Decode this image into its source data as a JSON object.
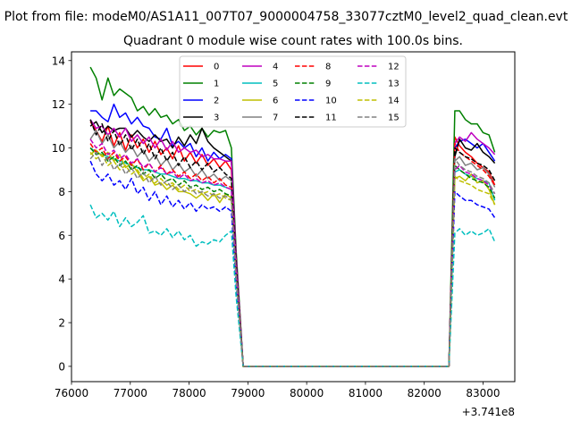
{
  "suptitle": "Plot from file: modeM0/AS1A11_007T07_9000004758_33077cztM0_level2_quad_clean.evt",
  "chart_data": {
    "type": "line",
    "title": "Quadrant 0 module wise count rates with 100.0s bins.",
    "xlabel": "",
    "ylabel": "",
    "x_offset_label": "+3.741e8",
    "xlim": [
      76000,
      83540
    ],
    "ylim": [
      -0.7,
      14.4
    ],
    "x_ticks": [
      76000,
      77000,
      78000,
      79000,
      80000,
      81000,
      82000,
      83000
    ],
    "y_ticks": [
      0,
      2,
      4,
      6,
      8,
      10,
      12,
      14
    ],
    "grid": false,
    "legend_position": "top-center",
    "legend_columns": 4,
    "x": [
      76320,
      76420,
      76520,
      76620,
      76720,
      76820,
      76920,
      77020,
      77120,
      77220,
      77320,
      77420,
      77520,
      77620,
      77720,
      77820,
      77920,
      78020,
      78120,
      78220,
      78320,
      78420,
      78520,
      78620,
      78720,
      78800,
      78920,
      79020,
      80000,
      81000,
      82000,
      82420,
      82520,
      82600,
      82700,
      82800,
      82900,
      83000,
      83100,
      83200
    ],
    "series": [
      {
        "name": "0",
        "color": "#ff0000",
        "style": "solid",
        "values": [
          11.2,
          10.8,
          10.3,
          11.0,
          10.1,
          10.7,
          9.9,
          10.6,
          10.0,
          10.4,
          9.8,
          10.3,
          9.7,
          10.0,
          9.5,
          10.1,
          9.4,
          9.8,
          9.3,
          9.7,
          9.2,
          9.5,
          9.1,
          9.4,
          9.0,
          5.0,
          0,
          0,
          0,
          0,
          0,
          0,
          10.5,
          10.1,
          9.8,
          9.6,
          9.3,
          9.1,
          8.9,
          8.3
        ]
      },
      {
        "name": "1",
        "color": "#008000",
        "style": "solid",
        "values": [
          13.7,
          13.2,
          12.2,
          13.2,
          12.4,
          12.7,
          12.5,
          12.3,
          11.7,
          11.9,
          11.5,
          11.8,
          11.4,
          11.5,
          11.1,
          11.3,
          10.8,
          11.0,
          10.6,
          10.9,
          10.5,
          10.8,
          10.7,
          10.8,
          10.0,
          5.3,
          0,
          0,
          0,
          0,
          0,
          0,
          11.7,
          11.7,
          11.3,
          11.1,
          11.1,
          10.7,
          10.6,
          9.8
        ]
      },
      {
        "name": "2",
        "color": "#0000ff",
        "style": "solid",
        "values": [
          11.7,
          11.7,
          11.4,
          11.2,
          12.0,
          11.4,
          11.6,
          11.1,
          11.4,
          11.0,
          10.9,
          10.5,
          10.4,
          10.9,
          10.1,
          10.3,
          10.0,
          10.2,
          9.6,
          10.0,
          9.4,
          9.8,
          9.5,
          9.7,
          9.5,
          4.8,
          0,
          0,
          0,
          0,
          0,
          0,
          10.0,
          10.3,
          10.4,
          10.2,
          10.0,
          10.2,
          9.8,
          9.4
        ]
      },
      {
        "name": "3",
        "color": "#000000",
        "style": "solid",
        "values": [
          11.0,
          11.2,
          10.7,
          11.0,
          10.8,
          10.9,
          10.9,
          10.5,
          10.8,
          10.5,
          10.3,
          10.6,
          10.3,
          10.4,
          10.0,
          10.5,
          10.1,
          10.6,
          10.2,
          10.9,
          10.3,
          10.0,
          9.8,
          9.6,
          9.4,
          5.0,
          0,
          0,
          0,
          0,
          0,
          0,
          9.6,
          10.4,
          10.0,
          9.9,
          10.2,
          9.8,
          9.6,
          9.3
        ]
      },
      {
        "name": "4",
        "color": "#bf00bf",
        "style": "solid",
        "values": [
          11.3,
          10.9,
          11.0,
          10.6,
          10.9,
          10.5,
          10.9,
          10.3,
          10.6,
          10.2,
          10.5,
          10.0,
          10.4,
          9.9,
          10.3,
          9.8,
          10.0,
          9.8,
          9.9,
          9.6,
          9.7,
          9.5,
          9.5,
          9.4,
          9.4,
          5.0,
          0,
          0,
          0,
          0,
          0,
          0,
          10.2,
          10.5,
          10.3,
          10.7,
          10.4,
          10.2,
          10.0,
          9.7
        ]
      },
      {
        "name": "5",
        "color": "#00bfbf",
        "style": "solid",
        "values": [
          10.0,
          9.8,
          9.7,
          9.6,
          9.5,
          9.4,
          9.3,
          9.2,
          9.1,
          9.0,
          9.0,
          8.9,
          8.8,
          8.8,
          8.7,
          8.6,
          8.6,
          8.5,
          8.5,
          8.4,
          8.4,
          8.3,
          8.3,
          8.2,
          8.1,
          4.4,
          0,
          0,
          0,
          0,
          0,
          0,
          8.9,
          9.0,
          8.8,
          8.7,
          8.6,
          8.5,
          8.4,
          7.6
        ]
      },
      {
        "name": "6",
        "color": "#bfbf00",
        "style": "solid",
        "values": [
          9.7,
          9.9,
          9.6,
          9.8,
          9.4,
          9.7,
          9.1,
          9.3,
          8.9,
          8.5,
          8.7,
          8.3,
          8.4,
          8.1,
          8.3,
          8.0,
          8.0,
          7.9,
          7.7,
          7.9,
          7.6,
          7.9,
          7.5,
          7.9,
          7.7,
          4.2,
          0,
          0,
          0,
          0,
          0,
          0,
          8.6,
          8.7,
          8.5,
          8.8,
          8.4,
          8.5,
          8.1,
          7.4
        ]
      },
      {
        "name": "7",
        "color": "#808080",
        "style": "solid",
        "values": [
          10.4,
          10.8,
          10.2,
          10.6,
          10.0,
          10.3,
          9.8,
          10.1,
          9.6,
          9.9,
          9.4,
          9.7,
          9.2,
          9.5,
          9.0,
          9.3,
          8.9,
          9.1,
          8.7,
          9.0,
          8.6,
          8.8,
          8.5,
          8.7,
          8.5,
          4.6,
          0,
          0,
          0,
          0,
          0,
          0,
          9.4,
          9.6,
          9.2,
          9.3,
          9.0,
          9.1,
          8.8,
          8.2
        ]
      },
      {
        "name": "8",
        "color": "#ff0000",
        "style": "dashed",
        "values": [
          10.2,
          9.8,
          10.0,
          9.5,
          9.8,
          9.4,
          9.6,
          9.2,
          9.5,
          9.0,
          9.3,
          8.9,
          9.2,
          8.8,
          9.0,
          8.7,
          8.9,
          8.6,
          8.8,
          8.5,
          8.7,
          8.4,
          8.6,
          8.3,
          8.2,
          4.5,
          0,
          0,
          0,
          0,
          0,
          0,
          10.2,
          9.8,
          9.6,
          9.4,
          9.2,
          9.0,
          8.7,
          8.3
        ]
      },
      {
        "name": "9",
        "color": "#008000",
        "style": "dashed",
        "values": [
          10.0,
          9.7,
          9.8,
          9.4,
          9.6,
          9.2,
          9.4,
          9.0,
          9.2,
          8.8,
          9.0,
          8.6,
          8.8,
          8.5,
          8.6,
          8.3,
          8.5,
          8.2,
          8.3,
          8.1,
          8.2,
          8.0,
          8.1,
          7.9,
          7.8,
          4.3,
          0,
          0,
          0,
          0,
          0,
          0,
          9.2,
          9.0,
          8.8,
          8.6,
          8.5,
          8.4,
          8.2,
          7.7
        ]
      },
      {
        "name": "10",
        "color": "#0000ff",
        "style": "dashed",
        "values": [
          9.4,
          8.8,
          8.5,
          8.8,
          8.3,
          8.5,
          8.1,
          8.6,
          7.9,
          8.2,
          7.6,
          8.0,
          7.4,
          7.8,
          7.3,
          7.6,
          7.2,
          7.5,
          7.1,
          7.4,
          7.2,
          7.3,
          7.1,
          7.3,
          7.1,
          3.8,
          0,
          0,
          0,
          0,
          0,
          0,
          8.0,
          7.8,
          7.6,
          7.6,
          7.4,
          7.3,
          7.2,
          6.8
        ]
      },
      {
        "name": "11",
        "color": "#000000",
        "style": "dashed",
        "values": [
          11.3,
          10.6,
          11.1,
          10.3,
          10.8,
          10.1,
          10.6,
          9.9,
          10.4,
          9.7,
          10.2,
          9.5,
          10.0,
          9.4,
          9.8,
          9.2,
          9.6,
          9.1,
          9.4,
          9.0,
          9.3,
          8.9,
          9.1,
          8.8,
          8.6,
          4.7,
          0,
          0,
          0,
          0,
          0,
          0,
          10.0,
          9.8,
          9.6,
          9.5,
          9.3,
          9.2,
          9.0,
          8.5
        ]
      },
      {
        "name": "12",
        "color": "#bf00bf",
        "style": "dashed",
        "values": [
          10.4,
          10.0,
          10.2,
          9.7,
          9.9,
          9.5,
          9.7,
          9.3,
          9.5,
          9.1,
          9.3,
          8.9,
          9.1,
          8.8,
          8.9,
          8.6,
          8.8,
          8.5,
          8.6,
          8.4,
          8.5,
          8.3,
          8.4,
          8.2,
          8.1,
          4.4,
          0,
          0,
          0,
          0,
          0,
          0,
          9.0,
          9.2,
          8.9,
          8.8,
          8.6,
          8.5,
          8.3,
          7.9
        ]
      },
      {
        "name": "13",
        "color": "#00bfbf",
        "style": "dashed",
        "values": [
          7.4,
          6.8,
          7.0,
          6.7,
          7.1,
          6.4,
          6.8,
          6.4,
          6.6,
          6.9,
          6.1,
          6.2,
          6.0,
          6.3,
          5.9,
          6.2,
          5.8,
          6.0,
          5.5,
          5.7,
          5.6,
          5.8,
          5.7,
          6.0,
          6.2,
          3.2,
          0,
          0,
          0,
          0,
          0,
          0,
          6.1,
          6.3,
          6.0,
          6.2,
          6.0,
          6.1,
          6.3,
          5.7
        ]
      },
      {
        "name": "14",
        "color": "#bfbf00",
        "style": "dashed",
        "values": [
          9.8,
          9.5,
          9.7,
          9.2,
          9.4,
          9.0,
          9.2,
          8.8,
          9.0,
          8.6,
          8.8,
          8.4,
          8.6,
          8.3,
          8.4,
          8.1,
          8.3,
          8.0,
          8.1,
          7.9,
          8.0,
          7.8,
          7.9,
          7.7,
          7.6,
          4.1,
          0,
          0,
          0,
          0,
          0,
          0,
          8.7,
          8.5,
          8.4,
          8.3,
          8.1,
          8.0,
          7.9,
          7.4
        ]
      },
      {
        "name": "15",
        "color": "#808080",
        "style": "dashed",
        "values": [
          9.5,
          9.8,
          9.2,
          9.6,
          9.0,
          9.3,
          8.8,
          9.1,
          8.6,
          8.9,
          8.4,
          8.7,
          8.3,
          8.5,
          8.1,
          8.3,
          8.0,
          8.2,
          7.9,
          8.0,
          7.8,
          7.9,
          7.7,
          7.8,
          7.6,
          4.1,
          0,
          0,
          0,
          0,
          0,
          0,
          9.5,
          9.2,
          9.0,
          8.9,
          8.7,
          8.6,
          8.4,
          7.9
        ]
      }
    ]
  }
}
